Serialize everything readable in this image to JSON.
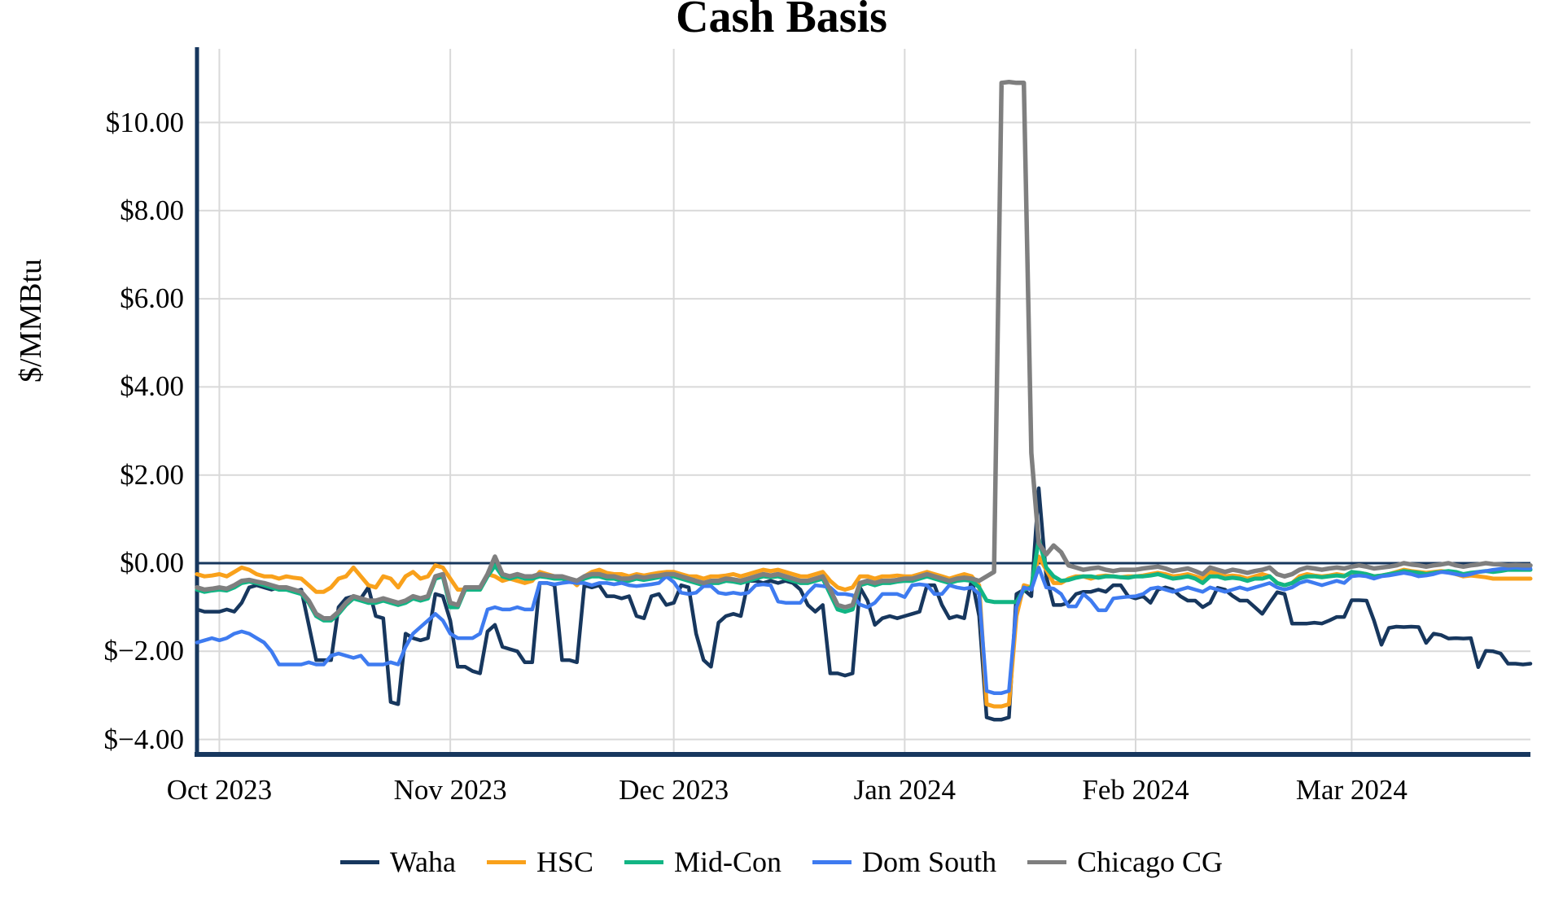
{
  "title": "Cash Basis",
  "y_axis": {
    "label": "$/MMBtu",
    "ticks": [
      {
        "label": "$10.00",
        "value": 10
      },
      {
        "label": "$8.00",
        "value": 8
      },
      {
        "label": "$6.00",
        "value": 6
      },
      {
        "label": "$4.00",
        "value": 4
      },
      {
        "label": "$2.00",
        "value": 2
      },
      {
        "label": "$0.00",
        "value": 0
      },
      {
        "label": "$−2.00",
        "value": -2
      },
      {
        "label": "$−4.00",
        "value": -4
      }
    ]
  },
  "x_axis": {
    "ticks": [
      {
        "label": "Oct 2023",
        "day": 3
      },
      {
        "label": "Nov 2023",
        "day": 34
      },
      {
        "label": "Dec 2023",
        "day": 64
      },
      {
        "label": "Jan 2024",
        "day": 95
      },
      {
        "label": "Feb 2024",
        "day": 126
      },
      {
        "label": "Mar 2024",
        "day": 155
      }
    ]
  },
  "legend": [
    {
      "name": "Waha",
      "color": "#17375E"
    },
    {
      "name": "HSC",
      "color": "#F9A11B"
    },
    {
      "name": "Mid-Con",
      "color": "#12B584"
    },
    {
      "name": "Dom South",
      "color": "#3E7BF0"
    },
    {
      "name": "Chicago CG",
      "color": "#7F7F7F"
    }
  ],
  "colors": {
    "axis": "#17375E",
    "zero_line": "#17375E",
    "gridline": "#D9D9D9",
    "background": "#FFFFFF"
  },
  "chart_data": {
    "type": "line",
    "title": "Cash Basis",
    "ylabel": "$/MMBtu",
    "xlabel": "",
    "grid": true,
    "legend_position": "bottom",
    "x_unit": "daily index, day 0 = 2023-09-28, day 179 = 2024-03-25",
    "x_range_days": [
      0,
      179
    ],
    "ylim": [
      -4.35,
      11.65
    ],
    "y_tick_step": 2,
    "zero_line": true,
    "series": [
      {
        "name": "Waha",
        "color": "#17375E",
        "values": [
          -1.05,
          -1.1,
          -1.1,
          -1.1,
          -1.05,
          -1.1,
          -0.9,
          -0.55,
          -0.5,
          -0.55,
          -0.6,
          -0.55,
          -0.6,
          -0.65,
          -0.6,
          -1.4,
          -2.2,
          -2.2,
          -2.2,
          -1.0,
          -0.8,
          -0.75,
          -0.8,
          -0.55,
          -1.2,
          -1.25,
          -3.15,
          -3.2,
          -1.6,
          -1.7,
          -1.75,
          -1.7,
          -0.7,
          -0.75,
          -1.3,
          -2.35,
          -2.35,
          -2.45,
          -2.5,
          -1.55,
          -1.4,
          -1.9,
          -1.95,
          -2.0,
          -2.25,
          -2.25,
          -0.45,
          -0.45,
          -0.5,
          -2.2,
          -2.2,
          -2.25,
          -0.5,
          -0.55,
          -0.5,
          -0.75,
          -0.75,
          -0.8,
          -0.75,
          -1.2,
          -1.25,
          -0.75,
          -0.7,
          -0.95,
          -0.9,
          -0.5,
          -0.55,
          -1.6,
          -2.2,
          -2.35,
          -1.35,
          -1.2,
          -1.15,
          -1.2,
          -0.4,
          -0.4,
          -0.45,
          -0.4,
          -0.45,
          -0.4,
          -0.45,
          -0.6,
          -0.95,
          -1.1,
          -0.95,
          -2.5,
          -2.5,
          -2.55,
          -2.5,
          -0.55,
          -0.85,
          -1.4,
          -1.25,
          -1.2,
          -1.25,
          -1.2,
          -1.15,
          -1.1,
          -0.5,
          -0.5,
          -0.95,
          -1.25,
          -1.2,
          -1.25,
          -0.35,
          -1.2,
          -3.5,
          -3.55,
          -3.55,
          -3.5,
          -0.7,
          -0.6,
          -0.75,
          1.7,
          -0.3,
          -0.95,
          -0.95,
          -0.9,
          -0.7,
          -0.65,
          -0.65,
          -0.6,
          -0.65,
          -0.5,
          -0.5,
          -0.75,
          -0.8,
          -0.75,
          -0.9,
          -0.6,
          -0.55,
          -0.6,
          -0.75,
          -0.85,
          -0.85,
          -1.0,
          -0.9,
          -0.56,
          -0.6,
          -0.74,
          -0.85,
          -0.85,
          -1.0,
          -1.15,
          -0.9,
          -0.66,
          -0.7,
          -1.37,
          -1.37,
          -1.37,
          -1.35,
          -1.37,
          -1.3,
          -1.22,
          -1.22,
          -0.84,
          -0.84,
          -0.85,
          -1.3,
          -1.85,
          -1.47,
          -1.44,
          -1.45,
          -1.44,
          -1.45,
          -1.81,
          -1.6,
          -1.63,
          -1.71,
          -1.7,
          -1.71,
          -1.7,
          -2.36,
          -1.99,
          -2.0,
          -2.05,
          -2.28,
          -2.28,
          -2.3,
          -2.28
        ]
      },
      {
        "name": "HSC",
        "color": "#F9A11B",
        "values": [
          -0.25,
          -0.3,
          -0.28,
          -0.25,
          -0.3,
          -0.2,
          -0.1,
          -0.15,
          -0.25,
          -0.3,
          -0.3,
          -0.35,
          -0.3,
          -0.33,
          -0.35,
          -0.5,
          -0.65,
          -0.65,
          -0.55,
          -0.35,
          -0.3,
          -0.1,
          -0.3,
          -0.5,
          -0.55,
          -0.3,
          -0.35,
          -0.55,
          -0.3,
          -0.2,
          -0.35,
          -0.3,
          -0.05,
          -0.1,
          -0.35,
          -0.6,
          -0.6,
          -0.55,
          -0.6,
          -0.25,
          -0.3,
          -0.4,
          -0.35,
          -0.4,
          -0.45,
          -0.4,
          -0.2,
          -0.25,
          -0.3,
          -0.3,
          -0.35,
          -0.5,
          -0.3,
          -0.2,
          -0.15,
          -0.22,
          -0.25,
          -0.25,
          -0.3,
          -0.25,
          -0.28,
          -0.25,
          -0.22,
          -0.2,
          -0.2,
          -0.25,
          -0.3,
          -0.3,
          -0.35,
          -0.3,
          -0.3,
          -0.28,
          -0.25,
          -0.3,
          -0.25,
          -0.2,
          -0.15,
          -0.18,
          -0.15,
          -0.2,
          -0.25,
          -0.3,
          -0.3,
          -0.25,
          -0.2,
          -0.4,
          -0.55,
          -0.6,
          -0.55,
          -0.3,
          -0.3,
          -0.35,
          -0.3,
          -0.3,
          -0.28,
          -0.3,
          -0.3,
          -0.25,
          -0.2,
          -0.25,
          -0.3,
          -0.35,
          -0.3,
          -0.25,
          -0.3,
          -0.5,
          -3.2,
          -3.25,
          -3.25,
          -3.2,
          -1.2,
          -0.5,
          -0.55,
          0.15,
          -0.15,
          -0.45,
          -0.45,
          -0.35,
          -0.3,
          -0.3,
          -0.35,
          -0.3,
          -0.28,
          -0.3,
          -0.32,
          -0.3,
          -0.3,
          -0.28,
          -0.25,
          -0.22,
          -0.25,
          -0.3,
          -0.28,
          -0.25,
          -0.3,
          -0.35,
          -0.2,
          -0.25,
          -0.3,
          -0.28,
          -0.3,
          -0.35,
          -0.3,
          -0.25,
          -0.3,
          -0.45,
          -0.5,
          -0.45,
          -0.3,
          -0.25,
          -0.28,
          -0.3,
          -0.28,
          -0.25,
          -0.28,
          -0.25,
          -0.22,
          -0.25,
          -0.3,
          -0.28,
          -0.25,
          -0.2,
          -0.15,
          -0.18,
          -0.2,
          -0.22,
          -0.2,
          -0.18,
          -0.2,
          -0.25,
          -0.3,
          -0.28,
          -0.3,
          -0.32,
          -0.35,
          -0.35,
          -0.35,
          -0.35,
          -0.35,
          -0.35
        ]
      },
      {
        "name": "Mid-Con",
        "color": "#12B584",
        "values": [
          -0.6,
          -0.65,
          -0.62,
          -0.6,
          -0.62,
          -0.55,
          -0.45,
          -0.42,
          -0.45,
          -0.5,
          -0.55,
          -0.6,
          -0.6,
          -0.65,
          -0.7,
          -0.9,
          -1.2,
          -1.3,
          -1.3,
          -1.15,
          -0.95,
          -0.8,
          -0.85,
          -0.9,
          -0.9,
          -0.85,
          -0.9,
          -0.95,
          -0.9,
          -0.8,
          -0.85,
          -0.8,
          -0.35,
          -0.3,
          -1.0,
          -1.0,
          -0.6,
          -0.6,
          -0.6,
          -0.3,
          -0.05,
          -0.3,
          -0.35,
          -0.3,
          -0.35,
          -0.35,
          -0.3,
          -0.32,
          -0.35,
          -0.35,
          -0.4,
          -0.45,
          -0.35,
          -0.3,
          -0.3,
          -0.35,
          -0.35,
          -0.4,
          -0.4,
          -0.35,
          -0.38,
          -0.35,
          -0.32,
          -0.3,
          -0.3,
          -0.35,
          -0.4,
          -0.45,
          -0.5,
          -0.45,
          -0.45,
          -0.4,
          -0.42,
          -0.45,
          -0.4,
          -0.35,
          -0.3,
          -0.32,
          -0.3,
          -0.35,
          -0.4,
          -0.45,
          -0.45,
          -0.4,
          -0.35,
          -0.7,
          -1.05,
          -1.1,
          -1.05,
          -0.5,
          -0.45,
          -0.5,
          -0.45,
          -0.45,
          -0.42,
          -0.4,
          -0.4,
          -0.35,
          -0.3,
          -0.35,
          -0.4,
          -0.45,
          -0.4,
          -0.38,
          -0.4,
          -0.55,
          -0.85,
          -0.88,
          -0.88,
          -0.88,
          -0.88,
          -0.6,
          -0.55,
          0.55,
          -0.1,
          -0.3,
          -0.4,
          -0.38,
          -0.33,
          -0.3,
          -0.3,
          -0.33,
          -0.3,
          -0.3,
          -0.32,
          -0.33,
          -0.3,
          -0.3,
          -0.28,
          -0.25,
          -0.3,
          -0.35,
          -0.33,
          -0.3,
          -0.35,
          -0.45,
          -0.3,
          -0.3,
          -0.35,
          -0.33,
          -0.35,
          -0.4,
          -0.35,
          -0.35,
          -0.3,
          -0.45,
          -0.5,
          -0.45,
          -0.35,
          -0.3,
          -0.3,
          -0.32,
          -0.3,
          -0.28,
          -0.3,
          -0.2,
          -0.22,
          -0.25,
          -0.3,
          -0.28,
          -0.25,
          -0.22,
          -0.18,
          -0.2,
          -0.22,
          -0.25,
          -0.22,
          -0.2,
          -0.18,
          -0.2,
          -0.25,
          -0.22,
          -0.2,
          -0.18,
          -0.2,
          -0.18,
          -0.15,
          -0.15,
          -0.15,
          -0.15
        ]
      },
      {
        "name": "Dom South",
        "color": "#3E7BF0",
        "values": [
          -1.8,
          -1.75,
          -1.7,
          -1.75,
          -1.7,
          -1.6,
          -1.55,
          -1.6,
          -1.7,
          -1.8,
          -2.0,
          -2.3,
          -2.3,
          -2.3,
          -2.3,
          -2.25,
          -2.3,
          -2.3,
          -2.1,
          -2.05,
          -2.1,
          -2.15,
          -2.1,
          -2.3,
          -2.3,
          -2.3,
          -2.25,
          -2.3,
          -1.9,
          -1.6,
          -1.45,
          -1.3,
          -1.15,
          -1.3,
          -1.6,
          -1.7,
          -1.7,
          -1.7,
          -1.6,
          -1.05,
          -1.0,
          -1.05,
          -1.05,
          -1.0,
          -1.05,
          -1.05,
          -0.45,
          -0.45,
          -0.48,
          -0.45,
          -0.43,
          -0.45,
          -0.45,
          -0.5,
          -0.45,
          -0.45,
          -0.48,
          -0.45,
          -0.5,
          -0.52,
          -0.5,
          -0.48,
          -0.45,
          -0.3,
          -0.43,
          -0.67,
          -0.7,
          -0.67,
          -0.52,
          -0.52,
          -0.67,
          -0.7,
          -0.67,
          -0.7,
          -0.67,
          -0.5,
          -0.48,
          -0.5,
          -0.87,
          -0.9,
          -0.9,
          -0.9,
          -0.67,
          -0.5,
          -0.52,
          -0.55,
          -0.7,
          -0.7,
          -0.73,
          -0.94,
          -1.0,
          -0.9,
          -0.7,
          -0.7,
          -0.7,
          -0.77,
          -0.5,
          -0.48,
          -0.5,
          -0.7,
          -0.7,
          -0.5,
          -0.55,
          -0.58,
          -0.55,
          -0.7,
          -2.9,
          -2.95,
          -2.95,
          -2.9,
          -1.0,
          -0.55,
          -0.6,
          -0.1,
          -0.55,
          -0.58,
          -0.7,
          -0.98,
          -0.98,
          -0.7,
          -0.85,
          -1.07,
          -1.07,
          -0.8,
          -0.78,
          -0.76,
          -0.75,
          -0.7,
          -0.58,
          -0.55,
          -0.6,
          -0.65,
          -0.6,
          -0.55,
          -0.6,
          -0.65,
          -0.55,
          -0.6,
          -0.65,
          -0.6,
          -0.55,
          -0.6,
          -0.55,
          -0.5,
          -0.45,
          -0.55,
          -0.6,
          -0.55,
          -0.45,
          -0.4,
          -0.45,
          -0.5,
          -0.45,
          -0.4,
          -0.45,
          -0.3,
          -0.28,
          -0.3,
          -0.35,
          -0.3,
          -0.28,
          -0.25,
          -0.22,
          -0.25,
          -0.3,
          -0.28,
          -0.25,
          -0.2,
          -0.22,
          -0.25,
          -0.28,
          -0.25,
          -0.2,
          -0.18,
          -0.15,
          -0.13,
          -0.12,
          -0.1,
          -0.12,
          -0.12
        ]
      },
      {
        "name": "Chicago CG",
        "color": "#7F7F7F",
        "values": [
          -0.55,
          -0.6,
          -0.58,
          -0.55,
          -0.58,
          -0.5,
          -0.4,
          -0.38,
          -0.42,
          -0.45,
          -0.5,
          -0.55,
          -0.55,
          -0.6,
          -0.65,
          -0.85,
          -1.15,
          -1.25,
          -1.25,
          -1.1,
          -0.9,
          -0.75,
          -0.8,
          -0.85,
          -0.85,
          -0.8,
          -0.85,
          -0.9,
          -0.85,
          -0.75,
          -0.8,
          -0.75,
          -0.3,
          -0.25,
          -0.9,
          -0.95,
          -0.55,
          -0.55,
          -0.55,
          -0.25,
          0.15,
          -0.25,
          -0.3,
          -0.25,
          -0.3,
          -0.3,
          -0.25,
          -0.28,
          -0.3,
          -0.3,
          -0.35,
          -0.4,
          -0.3,
          -0.25,
          -0.25,
          -0.3,
          -0.3,
          -0.35,
          -0.35,
          -0.3,
          -0.33,
          -0.3,
          -0.28,
          -0.25,
          -0.25,
          -0.3,
          -0.35,
          -0.4,
          -0.45,
          -0.4,
          -0.4,
          -0.35,
          -0.37,
          -0.4,
          -0.35,
          -0.3,
          -0.25,
          -0.28,
          -0.25,
          -0.3,
          -0.35,
          -0.4,
          -0.4,
          -0.35,
          -0.3,
          -0.6,
          -0.95,
          -1.0,
          -0.95,
          -0.45,
          -0.4,
          -0.45,
          -0.4,
          -0.4,
          -0.38,
          -0.35,
          -0.35,
          -0.3,
          -0.25,
          -0.3,
          -0.35,
          -0.4,
          -0.35,
          -0.33,
          -0.35,
          -0.4,
          -0.3,
          -0.2,
          10.9,
          10.92,
          10.9,
          10.9,
          2.5,
          0.45,
          0.2,
          0.4,
          0.25,
          -0.05,
          -0.1,
          -0.15,
          -0.12,
          -0.1,
          -0.15,
          -0.18,
          -0.15,
          -0.15,
          -0.15,
          -0.12,
          -0.1,
          -0.08,
          -0.12,
          -0.18,
          -0.15,
          -0.12,
          -0.18,
          -0.25,
          -0.1,
          -0.15,
          -0.2,
          -0.15,
          -0.18,
          -0.22,
          -0.18,
          -0.15,
          -0.1,
          -0.25,
          -0.3,
          -0.25,
          -0.15,
          -0.1,
          -0.12,
          -0.15,
          -0.12,
          -0.1,
          -0.12,
          -0.08,
          -0.05,
          -0.08,
          -0.12,
          -0.1,
          -0.08,
          -0.05,
          0.0,
          -0.03,
          -0.05,
          -0.08,
          -0.05,
          -0.03,
          0.0,
          -0.05,
          -0.08,
          -0.05,
          -0.03,
          0.0,
          -0.02,
          -0.03,
          -0.05,
          -0.04,
          -0.05,
          -0.05
        ]
      }
    ]
  }
}
